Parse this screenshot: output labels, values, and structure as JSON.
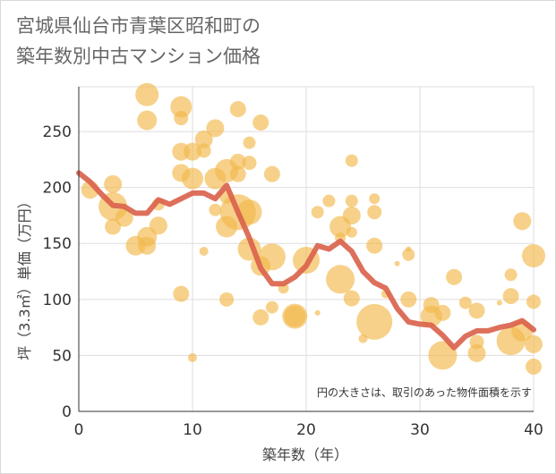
{
  "title_line1": "宮城県仙台市青葉区昭和町の",
  "title_line2": "築年数別中古マンション価格",
  "chart_data": {
    "type": "scatter",
    "xlabel": "築年数（年）",
    "ylabel": "坪（3.3㎡）単価（万円）",
    "xlim": [
      0,
      40
    ],
    "ylim": [
      0,
      290
    ],
    "xticks": [
      0,
      10,
      20,
      30,
      40
    ],
    "yticks": [
      0,
      50,
      100,
      150,
      200,
      250
    ],
    "grid": true,
    "annotation": "円の大きさは、取引のあった物件面積を示す",
    "colors": {
      "bubble": "#f2b84b",
      "line": "#d9604a",
      "grid": "#dddddd"
    },
    "line_series": {
      "x": [
        0,
        1,
        2,
        3,
        4,
        5,
        6,
        7,
        8,
        9,
        10,
        11,
        12,
        13,
        14,
        15,
        16,
        17,
        18,
        19,
        20,
        21,
        22,
        23,
        24,
        25,
        26,
        27,
        28,
        29,
        30,
        31,
        32,
        33,
        34,
        35,
        36,
        37,
        38,
        39,
        40
      ],
      "y": [
        213,
        205,
        194,
        184,
        183,
        177,
        177,
        189,
        185,
        190,
        195,
        195,
        190,
        202,
        178,
        155,
        128,
        114,
        114,
        120,
        130,
        148,
        145,
        152,
        143,
        125,
        115,
        110,
        92,
        80,
        78,
        77,
        68,
        57,
        67,
        72,
        72,
        75,
        77,
        81,
        73
      ]
    },
    "bubbles": [
      {
        "x": 1,
        "y": 198,
        "size": 10
      },
      {
        "x": 3,
        "y": 203,
        "size": 10
      },
      {
        "x": 3,
        "y": 183,
        "size": 16
      },
      {
        "x": 3,
        "y": 165,
        "size": 9
      },
      {
        "x": 4,
        "y": 173,
        "size": 10
      },
      {
        "x": 5,
        "y": 148,
        "size": 11
      },
      {
        "x": 6,
        "y": 283,
        "size": 13
      },
      {
        "x": 6,
        "y": 260,
        "size": 11
      },
      {
        "x": 6,
        "y": 156,
        "size": 11
      },
      {
        "x": 6,
        "y": 148,
        "size": 10
      },
      {
        "x": 7,
        "y": 185,
        "size": 7
      },
      {
        "x": 7,
        "y": 166,
        "size": 10
      },
      {
        "x": 9,
        "y": 272,
        "size": 12
      },
      {
        "x": 9,
        "y": 262,
        "size": 8
      },
      {
        "x": 9,
        "y": 232,
        "size": 10
      },
      {
        "x": 9,
        "y": 213,
        "size": 10
      },
      {
        "x": 9,
        "y": 105,
        "size": 9
      },
      {
        "x": 10,
        "y": 232,
        "size": 10
      },
      {
        "x": 10,
        "y": 208,
        "size": 12
      },
      {
        "x": 10,
        "y": 48,
        "size": 5
      },
      {
        "x": 11,
        "y": 243,
        "size": 10
      },
      {
        "x": 11,
        "y": 233,
        "size": 8
      },
      {
        "x": 11,
        "y": 143,
        "size": 5
      },
      {
        "x": 12,
        "y": 253,
        "size": 10
      },
      {
        "x": 12,
        "y": 208,
        "size": 12
      },
      {
        "x": 12,
        "y": 180,
        "size": 7
      },
      {
        "x": 13,
        "y": 215,
        "size": 13
      },
      {
        "x": 13,
        "y": 192,
        "size": 8
      },
      {
        "x": 13,
        "y": 165,
        "size": 12
      },
      {
        "x": 13,
        "y": 100,
        "size": 8
      },
      {
        "x": 14,
        "y": 270,
        "size": 9
      },
      {
        "x": 14,
        "y": 223,
        "size": 9
      },
      {
        "x": 14,
        "y": 212,
        "size": 9
      },
      {
        "x": 14,
        "y": 178,
        "size": 20
      },
      {
        "x": 15,
        "y": 240,
        "size": 7
      },
      {
        "x": 15,
        "y": 222,
        "size": 8
      },
      {
        "x": 15,
        "y": 178,
        "size": 14
      },
      {
        "x": 15,
        "y": 145,
        "size": 13
      },
      {
        "x": 16,
        "y": 258,
        "size": 9
      },
      {
        "x": 16,
        "y": 130,
        "size": 11
      },
      {
        "x": 16,
        "y": 84,
        "size": 9
      },
      {
        "x": 17,
        "y": 212,
        "size": 9
      },
      {
        "x": 17,
        "y": 138,
        "size": 15
      },
      {
        "x": 17,
        "y": 93,
        "size": 7
      },
      {
        "x": 18,
        "y": 110,
        "size": 6
      },
      {
        "x": 19,
        "y": 85,
        "size": 14
      },
      {
        "x": 19,
        "y": 85,
        "size": 12
      },
      {
        "x": 20,
        "y": 135,
        "size": 15
      },
      {
        "x": 21,
        "y": 178,
        "size": 7
      },
      {
        "x": 21,
        "y": 88,
        "size": 3
      },
      {
        "x": 22,
        "y": 188,
        "size": 7
      },
      {
        "x": 23,
        "y": 165,
        "size": 12
      },
      {
        "x": 23,
        "y": 155,
        "size": 6
      },
      {
        "x": 23,
        "y": 118,
        "size": 16
      },
      {
        "x": 24,
        "y": 224,
        "size": 7
      },
      {
        "x": 24,
        "y": 188,
        "size": 7
      },
      {
        "x": 24,
        "y": 175,
        "size": 10
      },
      {
        "x": 24,
        "y": 160,
        "size": 6
      },
      {
        "x": 24,
        "y": 101,
        "size": 9
      },
      {
        "x": 25,
        "y": 65,
        "size": 5
      },
      {
        "x": 26,
        "y": 190,
        "size": 6
      },
      {
        "x": 26,
        "y": 178,
        "size": 8
      },
      {
        "x": 26,
        "y": 148,
        "size": 9
      },
      {
        "x": 26,
        "y": 80,
        "size": 20
      },
      {
        "x": 27,
        "y": 105,
        "size": 5
      },
      {
        "x": 28,
        "y": 132,
        "size": 3
      },
      {
        "x": 29,
        "y": 145,
        "size": 3
      },
      {
        "x": 29,
        "y": 140,
        "size": 7
      },
      {
        "x": 29,
        "y": 100,
        "size": 9
      },
      {
        "x": 31,
        "y": 95,
        "size": 9
      },
      {
        "x": 31,
        "y": 85,
        "size": 12
      },
      {
        "x": 32,
        "y": 88,
        "size": 9
      },
      {
        "x": 32,
        "y": 50,
        "size": 16
      },
      {
        "x": 33,
        "y": 120,
        "size": 9
      },
      {
        "x": 34,
        "y": 97,
        "size": 7
      },
      {
        "x": 35,
        "y": 90,
        "size": 9
      },
      {
        "x": 35,
        "y": 62,
        "size": 8
      },
      {
        "x": 35,
        "y": 52,
        "size": 10
      },
      {
        "x": 37,
        "y": 97,
        "size": 3
      },
      {
        "x": 38,
        "y": 122,
        "size": 7
      },
      {
        "x": 38,
        "y": 103,
        "size": 9
      },
      {
        "x": 38,
        "y": 63,
        "size": 16
      },
      {
        "x": 39,
        "y": 170,
        "size": 10
      },
      {
        "x": 39,
        "y": 72,
        "size": 12
      },
      {
        "x": 40,
        "y": 139,
        "size": 13
      },
      {
        "x": 40,
        "y": 98,
        "size": 8
      },
      {
        "x": 40,
        "y": 60,
        "size": 10
      },
      {
        "x": 40,
        "y": 40,
        "size": 9
      }
    ]
  }
}
